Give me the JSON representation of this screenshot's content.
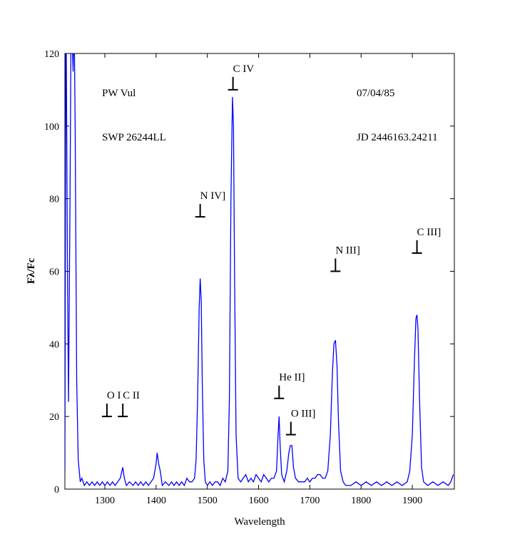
{
  "chart_data": {
    "type": "line",
    "xlabel": "Wavelength",
    "ylabel": "Fλ/Fc",
    "texts": [
      "PW Vul",
      "SWP 26244LL",
      "07/04/85",
      "JD 2446163.24211"
    ],
    "color": "#0000ff",
    "x": [
      1222,
      1224,
      1227,
      1229,
      1232,
      1234,
      1236,
      1238,
      1240,
      1242,
      1245,
      1248,
      1252,
      1255,
      1260,
      1265,
      1270,
      1275,
      1280,
      1285,
      1290,
      1295,
      1300,
      1305,
      1310,
      1315,
      1320,
      1325,
      1330,
      1335,
      1338,
      1342,
      1348,
      1355,
      1360,
      1365,
      1370,
      1375,
      1380,
      1385,
      1390,
      1395,
      1400,
      1402,
      1405,
      1408,
      1412,
      1418,
      1425,
      1430,
      1435,
      1440,
      1445,
      1450,
      1455,
      1460,
      1465,
      1470,
      1475,
      1478,
      1481,
      1484,
      1486,
      1488,
      1490,
      1493,
      1496,
      1500,
      1505,
      1510,
      1515,
      1520,
      1525,
      1530,
      1535,
      1540,
      1543,
      1546,
      1549,
      1551,
      1553,
      1556,
      1560,
      1565,
      1570,
      1575,
      1580,
      1585,
      1590,
      1595,
      1600,
      1605,
      1610,
      1615,
      1620,
      1625,
      1630,
      1635,
      1638,
      1640,
      1642,
      1645,
      1650,
      1655,
      1659,
      1662,
      1665,
      1668,
      1672,
      1678,
      1685,
      1690,
      1695,
      1700,
      1705,
      1710,
      1715,
      1720,
      1725,
      1730,
      1735,
      1740,
      1744,
      1747,
      1750,
      1753,
      1756,
      1760,
      1765,
      1770,
      1780,
      1790,
      1800,
      1810,
      1820,
      1830,
      1840,
      1850,
      1860,
      1870,
      1880,
      1890,
      1895,
      1900,
      1904,
      1907,
      1909,
      1911,
      1914,
      1918,
      1922,
      1930,
      1940,
      1950,
      1960,
      1970,
      1975,
      1980
    ],
    "values": [
      5,
      140,
      60,
      24,
      80,
      130,
      125,
      115,
      130,
      100,
      30,
      8,
      2,
      3,
      1,
      2,
      1,
      2,
      1,
      2,
      1,
      2,
      1,
      2,
      1,
      2,
      1,
      2,
      3,
      6,
      3,
      1,
      2,
      1,
      2,
      1,
      2,
      1,
      2,
      1,
      2,
      3,
      7,
      10,
      7,
      5,
      1,
      2,
      1,
      2,
      1,
      2,
      1,
      2,
      1,
      3,
      2,
      2,
      3,
      8,
      25,
      50,
      58,
      52,
      30,
      8,
      2,
      1,
      2,
      1,
      2,
      2,
      1,
      3,
      2,
      5,
      25,
      80,
      108,
      100,
      60,
      15,
      3,
      2,
      3,
      4,
      2,
      3,
      2,
      4,
      3,
      2,
      4,
      3,
      2,
      3,
      3,
      5,
      15,
      20,
      12,
      4,
      2,
      5,
      10,
      12,
      12,
      6,
      3,
      2,
      2,
      2,
      3,
      2,
      3,
      3,
      4,
      4,
      3,
      3,
      5,
      15,
      32,
      40,
      41,
      34,
      18,
      5,
      2,
      1,
      1,
      2,
      1,
      2,
      1,
      2,
      1,
      2,
      1,
      2,
      1,
      2,
      5,
      15,
      35,
      47,
      48,
      44,
      25,
      6,
      2,
      1,
      2,
      1,
      2,
      1,
      2,
      4
    ],
    "annotations": [
      {
        "text": "O I",
        "x": 1304,
        "y": 20
      },
      {
        "text": "C II",
        "x": 1335,
        "y": 20
      },
      {
        "text": "N IV]",
        "x": 1486,
        "y": 75
      },
      {
        "text": "C IV",
        "x": 1550,
        "y": 110
      },
      {
        "text": "He II]",
        "x": 1640,
        "y": 25
      },
      {
        "text": "O III]",
        "x": 1663,
        "y": 15
      },
      {
        "text": "N III]",
        "x": 1750,
        "y": 60
      },
      {
        "text": "C III]",
        "x": 1909,
        "y": 65
      }
    ],
    "xlim": [
      1222,
      1982
    ],
    "ylim": [
      0,
      120
    ],
    "xticks": [
      1300,
      1400,
      1500,
      1600,
      1700,
      1800,
      1900
    ],
    "yticks": [
      0,
      20,
      40,
      60,
      80,
      100,
      120
    ],
    "grid": false
  }
}
